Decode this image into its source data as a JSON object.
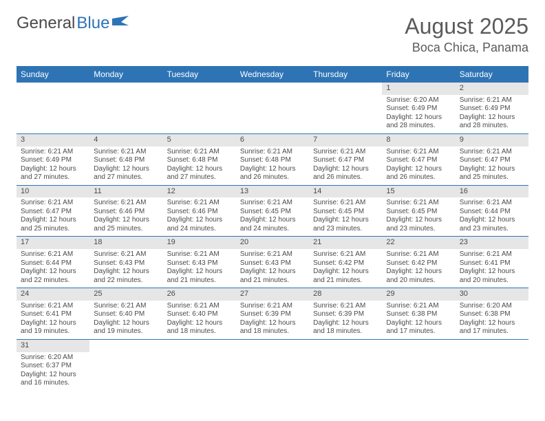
{
  "logo": {
    "part1": "General",
    "part2": "Blue"
  },
  "title": "August 2025",
  "location": "Boca Chica, Panama",
  "colors": {
    "header_bg": "#2e74b5",
    "header_text": "#ffffff",
    "daynum_bg": "#e6e6e6",
    "border": "#2e74b5",
    "title_color": "#5a5a5a",
    "text_color": "#4a4a4a"
  },
  "day_headers": [
    "Sunday",
    "Monday",
    "Tuesday",
    "Wednesday",
    "Thursday",
    "Friday",
    "Saturday"
  ],
  "weeks": [
    [
      null,
      null,
      null,
      null,
      null,
      {
        "n": "1",
        "sr": "Sunrise: 6:20 AM",
        "ss": "Sunset: 6:49 PM",
        "d1": "Daylight: 12 hours",
        "d2": "and 28 minutes."
      },
      {
        "n": "2",
        "sr": "Sunrise: 6:21 AM",
        "ss": "Sunset: 6:49 PM",
        "d1": "Daylight: 12 hours",
        "d2": "and 28 minutes."
      }
    ],
    [
      {
        "n": "3",
        "sr": "Sunrise: 6:21 AM",
        "ss": "Sunset: 6:49 PM",
        "d1": "Daylight: 12 hours",
        "d2": "and 27 minutes."
      },
      {
        "n": "4",
        "sr": "Sunrise: 6:21 AM",
        "ss": "Sunset: 6:48 PM",
        "d1": "Daylight: 12 hours",
        "d2": "and 27 minutes."
      },
      {
        "n": "5",
        "sr": "Sunrise: 6:21 AM",
        "ss": "Sunset: 6:48 PM",
        "d1": "Daylight: 12 hours",
        "d2": "and 27 minutes."
      },
      {
        "n": "6",
        "sr": "Sunrise: 6:21 AM",
        "ss": "Sunset: 6:48 PM",
        "d1": "Daylight: 12 hours",
        "d2": "and 26 minutes."
      },
      {
        "n": "7",
        "sr": "Sunrise: 6:21 AM",
        "ss": "Sunset: 6:47 PM",
        "d1": "Daylight: 12 hours",
        "d2": "and 26 minutes."
      },
      {
        "n": "8",
        "sr": "Sunrise: 6:21 AM",
        "ss": "Sunset: 6:47 PM",
        "d1": "Daylight: 12 hours",
        "d2": "and 26 minutes."
      },
      {
        "n": "9",
        "sr": "Sunrise: 6:21 AM",
        "ss": "Sunset: 6:47 PM",
        "d1": "Daylight: 12 hours",
        "d2": "and 25 minutes."
      }
    ],
    [
      {
        "n": "10",
        "sr": "Sunrise: 6:21 AM",
        "ss": "Sunset: 6:47 PM",
        "d1": "Daylight: 12 hours",
        "d2": "and 25 minutes."
      },
      {
        "n": "11",
        "sr": "Sunrise: 6:21 AM",
        "ss": "Sunset: 6:46 PM",
        "d1": "Daylight: 12 hours",
        "d2": "and 25 minutes."
      },
      {
        "n": "12",
        "sr": "Sunrise: 6:21 AM",
        "ss": "Sunset: 6:46 PM",
        "d1": "Daylight: 12 hours",
        "d2": "and 24 minutes."
      },
      {
        "n": "13",
        "sr": "Sunrise: 6:21 AM",
        "ss": "Sunset: 6:45 PM",
        "d1": "Daylight: 12 hours",
        "d2": "and 24 minutes."
      },
      {
        "n": "14",
        "sr": "Sunrise: 6:21 AM",
        "ss": "Sunset: 6:45 PM",
        "d1": "Daylight: 12 hours",
        "d2": "and 23 minutes."
      },
      {
        "n": "15",
        "sr": "Sunrise: 6:21 AM",
        "ss": "Sunset: 6:45 PM",
        "d1": "Daylight: 12 hours",
        "d2": "and 23 minutes."
      },
      {
        "n": "16",
        "sr": "Sunrise: 6:21 AM",
        "ss": "Sunset: 6:44 PM",
        "d1": "Daylight: 12 hours",
        "d2": "and 23 minutes."
      }
    ],
    [
      {
        "n": "17",
        "sr": "Sunrise: 6:21 AM",
        "ss": "Sunset: 6:44 PM",
        "d1": "Daylight: 12 hours",
        "d2": "and 22 minutes."
      },
      {
        "n": "18",
        "sr": "Sunrise: 6:21 AM",
        "ss": "Sunset: 6:43 PM",
        "d1": "Daylight: 12 hours",
        "d2": "and 22 minutes."
      },
      {
        "n": "19",
        "sr": "Sunrise: 6:21 AM",
        "ss": "Sunset: 6:43 PM",
        "d1": "Daylight: 12 hours",
        "d2": "and 21 minutes."
      },
      {
        "n": "20",
        "sr": "Sunrise: 6:21 AM",
        "ss": "Sunset: 6:43 PM",
        "d1": "Daylight: 12 hours",
        "d2": "and 21 minutes."
      },
      {
        "n": "21",
        "sr": "Sunrise: 6:21 AM",
        "ss": "Sunset: 6:42 PM",
        "d1": "Daylight: 12 hours",
        "d2": "and 21 minutes."
      },
      {
        "n": "22",
        "sr": "Sunrise: 6:21 AM",
        "ss": "Sunset: 6:42 PM",
        "d1": "Daylight: 12 hours",
        "d2": "and 20 minutes."
      },
      {
        "n": "23",
        "sr": "Sunrise: 6:21 AM",
        "ss": "Sunset: 6:41 PM",
        "d1": "Daylight: 12 hours",
        "d2": "and 20 minutes."
      }
    ],
    [
      {
        "n": "24",
        "sr": "Sunrise: 6:21 AM",
        "ss": "Sunset: 6:41 PM",
        "d1": "Daylight: 12 hours",
        "d2": "and 19 minutes."
      },
      {
        "n": "25",
        "sr": "Sunrise: 6:21 AM",
        "ss": "Sunset: 6:40 PM",
        "d1": "Daylight: 12 hours",
        "d2": "and 19 minutes."
      },
      {
        "n": "26",
        "sr": "Sunrise: 6:21 AM",
        "ss": "Sunset: 6:40 PM",
        "d1": "Daylight: 12 hours",
        "d2": "and 18 minutes."
      },
      {
        "n": "27",
        "sr": "Sunrise: 6:21 AM",
        "ss": "Sunset: 6:39 PM",
        "d1": "Daylight: 12 hours",
        "d2": "and 18 minutes."
      },
      {
        "n": "28",
        "sr": "Sunrise: 6:21 AM",
        "ss": "Sunset: 6:39 PM",
        "d1": "Daylight: 12 hours",
        "d2": "and 18 minutes."
      },
      {
        "n": "29",
        "sr": "Sunrise: 6:21 AM",
        "ss": "Sunset: 6:38 PM",
        "d1": "Daylight: 12 hours",
        "d2": "and 17 minutes."
      },
      {
        "n": "30",
        "sr": "Sunrise: 6:20 AM",
        "ss": "Sunset: 6:38 PM",
        "d1": "Daylight: 12 hours",
        "d2": "and 17 minutes."
      }
    ],
    [
      {
        "n": "31",
        "sr": "Sunrise: 6:20 AM",
        "ss": "Sunset: 6:37 PM",
        "d1": "Daylight: 12 hours",
        "d2": "and 16 minutes."
      },
      null,
      null,
      null,
      null,
      null,
      null
    ]
  ]
}
